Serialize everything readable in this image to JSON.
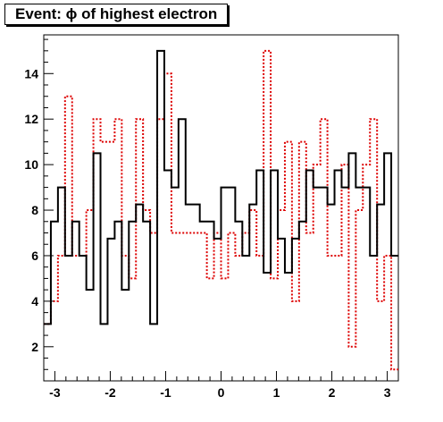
{
  "chart_data": {
    "type": "line",
    "title": "Event: ϕ of highest electron",
    "xlabel": "",
    "ylabel": "",
    "xlim": [
      -3.2,
      3.2
    ],
    "ylim": [
      0.5,
      15.7
    ],
    "x_ticks": [
      -3,
      -2,
      -1,
      0,
      1,
      2,
      3
    ],
    "y_ticks": [
      2,
      4,
      6,
      8,
      10,
      12,
      14
    ],
    "grid": false,
    "bins": 50,
    "series": [
      {
        "style": "solid",
        "color": "#000000",
        "values": [
          3,
          7.5,
          9,
          6,
          7.5,
          6,
          4.5,
          10.5,
          3,
          6.75,
          7.5,
          4.5,
          7.5,
          8.25,
          7.5,
          3,
          15,
          9.75,
          9,
          12,
          8.25,
          8.25,
          7.5,
          7.5,
          6.75,
          9,
          9,
          7.5,
          6,
          8.25,
          9.75,
          5.25,
          9.75,
          6.75,
          5.25,
          6.75,
          7.5,
          9.75,
          9,
          9,
          8.25,
          9.75,
          9,
          10.5,
          9,
          9,
          6,
          8.25,
          10.5,
          6
        ]
      },
      {
        "style": "dotted",
        "color": "#dd0000",
        "values": [
          3,
          4,
          6,
          13,
          6,
          6,
          8,
          12,
          11,
          11,
          12,
          6,
          5,
          12,
          8,
          7,
          12,
          14,
          7,
          7,
          7,
          7,
          7,
          5,
          7,
          5,
          7,
          6,
          7,
          8,
          6,
          15,
          5,
          8,
          11,
          4,
          11,
          7,
          10,
          12,
          6,
          6,
          10,
          2,
          8,
          10,
          12,
          4,
          6,
          1
        ]
      }
    ]
  }
}
